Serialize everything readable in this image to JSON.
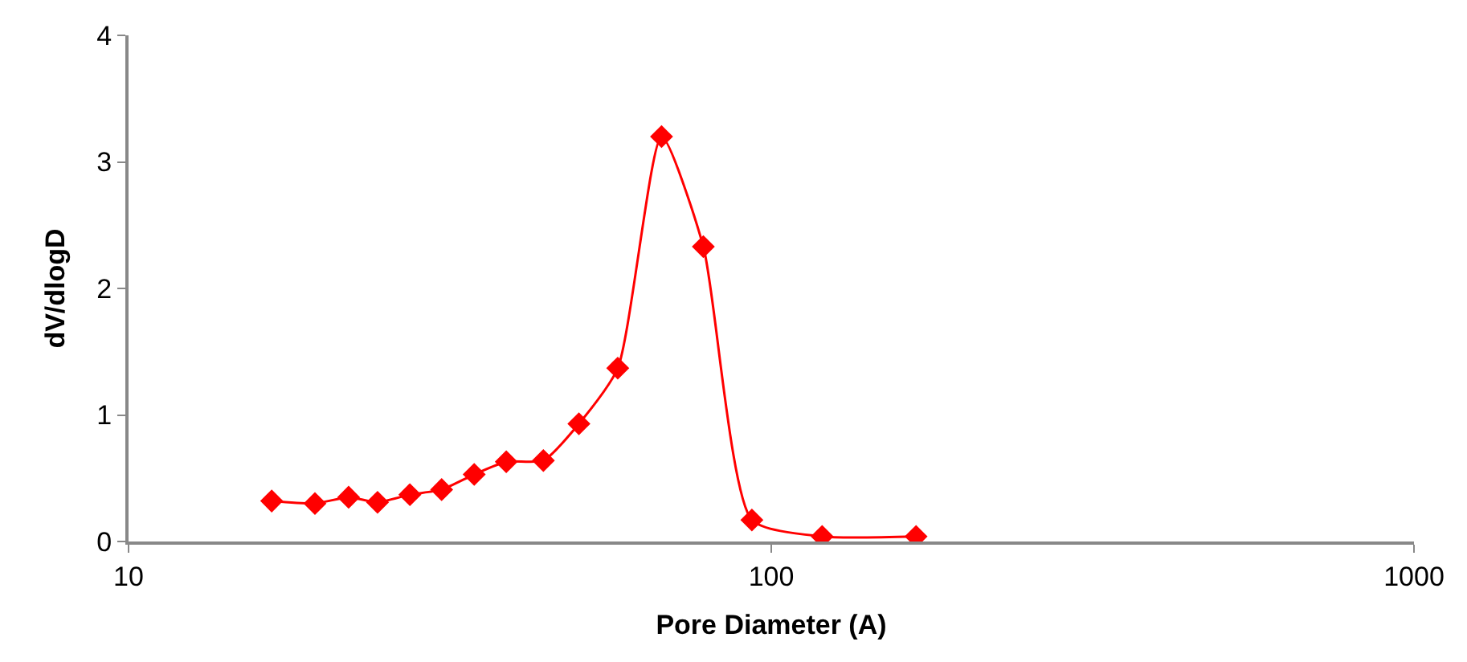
{
  "chart_data": {
    "type": "line",
    "xlabel": "Pore Diameter (A)",
    "ylabel": "dV/dlogD",
    "log": "x",
    "x": [
      16.7,
      19.5,
      22.0,
      24.4,
      27.4,
      30.7,
      34.5,
      38.7,
      44.2,
      50.2,
      57.7,
      67.5,
      78.4,
      93.3,
      120,
      168
    ],
    "series": [
      {
        "color": "#ff0000",
        "values": [
          0.32,
          0.3,
          0.35,
          0.31,
          0.37,
          0.41,
          0.53,
          0.63,
          0.64,
          0.93,
          1.37,
          3.2,
          2.33,
          0.17,
          0.04,
          0.04
        ]
      }
    ],
    "xlim": [
      10,
      1000
    ],
    "xticks": [
      10,
      100,
      1000
    ],
    "ylim": [
      0,
      4
    ],
    "yticks": [
      0,
      1,
      2,
      3,
      4
    ],
    "legend": false,
    "marker": "diamond",
    "line_style": "solid"
  }
}
